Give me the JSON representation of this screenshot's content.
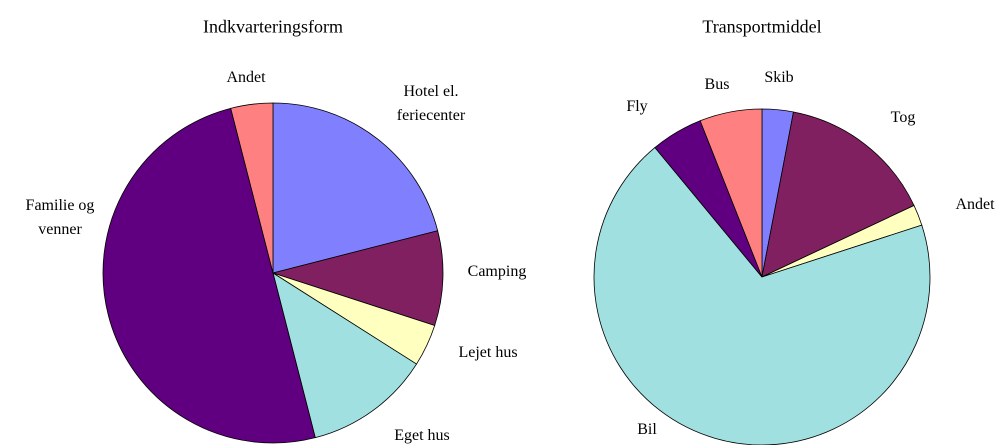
{
  "chart_data": [
    {
      "type": "pie",
      "title": "Indkvarteringsform",
      "categories": [
        "Hotel el. feriecenter",
        "Camping",
        "Lejet hus",
        "Eget hus",
        "Familie og venner",
        "Andet"
      ],
      "values": [
        21,
        9,
        4,
        12,
        50,
        4
      ],
      "colors": [
        "#8080ff",
        "#802060",
        "#ffffc0",
        "#a0e0e0",
        "#600080",
        "#ff8080"
      ]
    },
    {
      "type": "pie",
      "title": "Transportmiddel",
      "categories": [
        "Skib",
        "Tog",
        "Andet",
        "Bil",
        "Fly",
        "Bus"
      ],
      "values": [
        3,
        15,
        2,
        69,
        5,
        6
      ],
      "colors": [
        "#8080ff",
        "#802060",
        "#ffffc0",
        "#a0e0e0",
        "#600080",
        "#ff8080"
      ]
    }
  ]
}
